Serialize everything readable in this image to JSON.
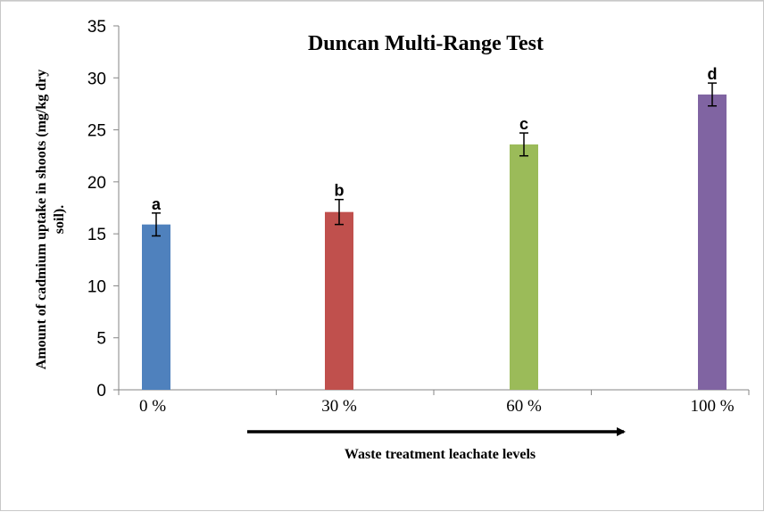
{
  "chart_data": {
    "type": "bar",
    "title": "Duncan Multi-Range Test",
    "xlabel": "Waste treatment leachate levels",
    "ylabel": [
      "Amount of cadmium uptake in shoots (mg/kg dry",
      "soil)."
    ],
    "categories": [
      "0 %",
      "30 %",
      "60 %",
      "100 %"
    ],
    "values": [
      15.9,
      17.1,
      23.6,
      28.4
    ],
    "error": [
      1.1,
      1.2,
      1.1,
      1.1
    ],
    "significance_letters": [
      "a",
      "b",
      "c",
      "d"
    ],
    "colors": [
      "#4f81bd",
      "#c0504d",
      "#9bbb59",
      "#8064a2"
    ],
    "ylim": [
      0,
      35
    ],
    "yticks": [
      0,
      5,
      10,
      15,
      20,
      25,
      30,
      35
    ],
    "grid": false,
    "legend": "none",
    "annotation": "arrow under categories pointing right"
  }
}
